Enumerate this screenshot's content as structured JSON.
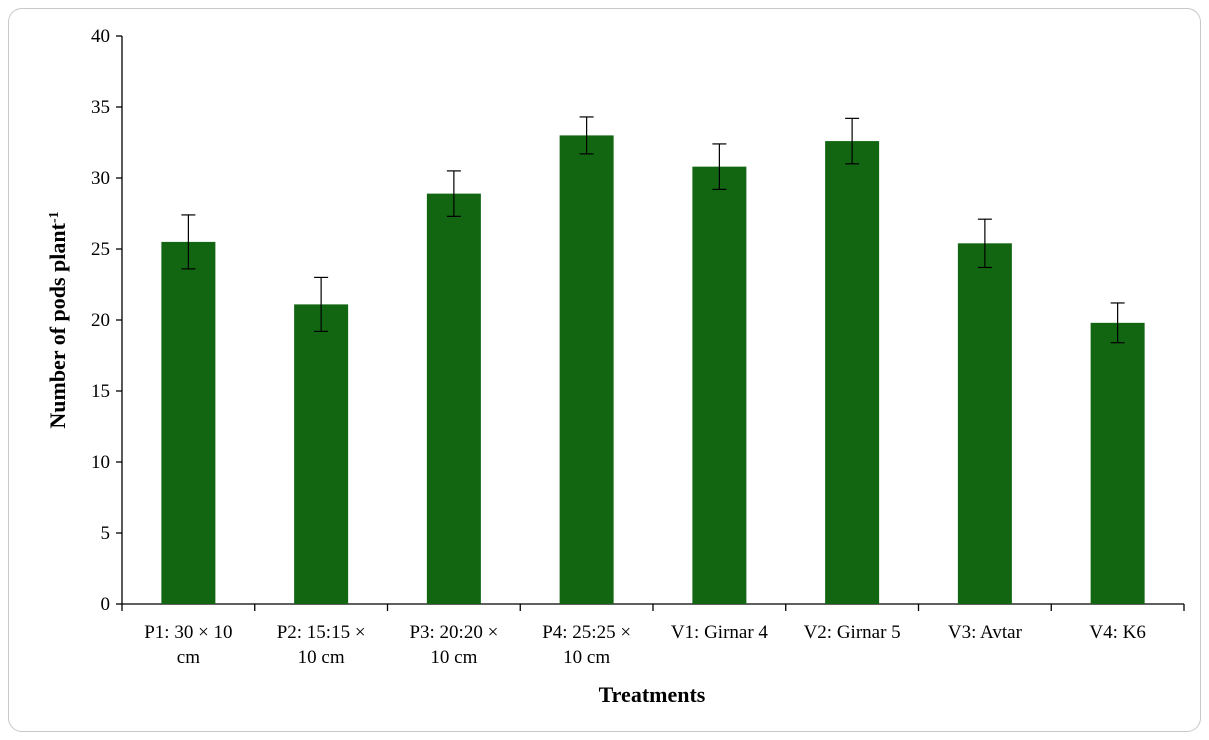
{
  "chart_data": {
    "type": "bar",
    "categories": [
      [
        "P1: 30 × 10",
        "cm"
      ],
      [
        "P2: 15:15 ×",
        "10 cm"
      ],
      [
        "P3: 20:20 ×",
        "10 cm"
      ],
      [
        "P4: 25:25 ×",
        "10 cm"
      ],
      [
        "V1: Girnar 4"
      ],
      [
        "V2: Girnar 5"
      ],
      [
        "V3: Avtar"
      ],
      [
        "V4: K6"
      ]
    ],
    "values": [
      25.5,
      21.1,
      28.9,
      33.0,
      30.8,
      32.6,
      25.4,
      19.8
    ],
    "errors": [
      1.9,
      1.9,
      1.6,
      1.3,
      1.6,
      1.6,
      1.7,
      1.4
    ],
    "xlabel": "Treatments",
    "ylabel": "Number of pods plant",
    "ylabel_superscript": "-1",
    "ylim": [
      0,
      40
    ],
    "yticks": [
      0,
      5,
      10,
      15,
      20,
      25,
      30,
      35,
      40
    ],
    "bar_color": "#126612",
    "grid": false,
    "legend": "none"
  }
}
